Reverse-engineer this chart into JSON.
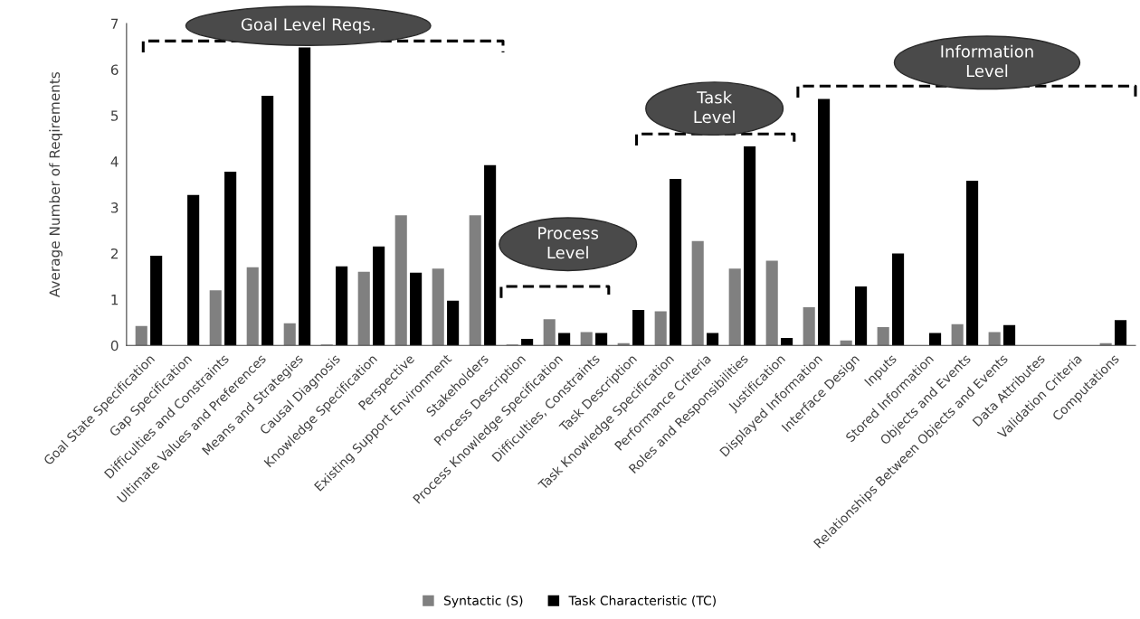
{
  "chart_data": {
    "type": "bar",
    "ylabel": "Average Number of Reqirements",
    "categories": [
      "Goal State Specification",
      "Gap Specification",
      "Difficulties and Constraints",
      "Ultimate Values and Preferences",
      "Means and Strategies",
      "Causal Diagnosis",
      "Knowledge Specification",
      "Perspective",
      "Existing Support Environment",
      "Stakeholders",
      "Process Description",
      "Process Knowledge Specification",
      "Difficulties, Constraints",
      "Task Description",
      "Task Knowledge Specification",
      "Performance Criteria",
      "Roles and Responsibilities",
      "Justification",
      "Displayed Information",
      "Interface Design",
      "Inputs",
      "Stored Information",
      "Objects and Events",
      "Relationships Between Objects and Events",
      "Data Attributes",
      "Validation Criteria",
      "Computations"
    ],
    "series": [
      {
        "name": "Syntactic (S)",
        "color": "#808080",
        "values": [
          0.42,
          0,
          1.2,
          1.7,
          0.48,
          0.02,
          1.6,
          2.83,
          1.67,
          2.83,
          0.02,
          0.57,
          0.29,
          0.05,
          0.74,
          2.27,
          1.67,
          1.84,
          0.83,
          0.11,
          0.4,
          0,
          0.46,
          0.29,
          0,
          0,
          0.05
        ]
      },
      {
        "name": "Task Characteristic (TC)",
        "color": "#000000",
        "values": [
          1.95,
          3.27,
          3.78,
          5.43,
          6.48,
          1.72,
          2.15,
          1.58,
          0.97,
          3.92,
          0.14,
          0.27,
          0.27,
          0.77,
          3.62,
          0.27,
          4.33,
          0.16,
          5.36,
          1.28,
          2.0,
          0.27,
          3.58,
          0.44,
          0,
          0,
          0.55
        ]
      }
    ],
    "ylim": [
      0,
      7
    ],
    "yticks": [
      0,
      1,
      2,
      3,
      4,
      5,
      6,
      7
    ],
    "grid": false,
    "legend": "bottom",
    "annotations": [
      "Goal Level Reqs.",
      "Process\nLevel",
      "Task\nLevel",
      "Information\nLevel"
    ]
  }
}
